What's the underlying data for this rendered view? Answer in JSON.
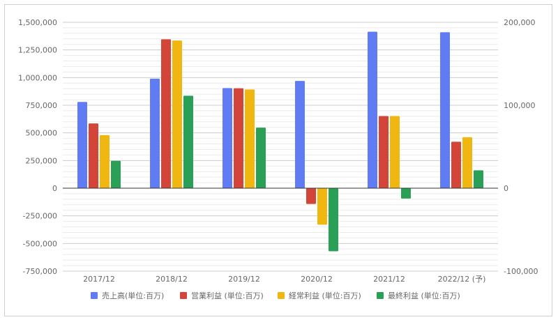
{
  "chart_data": {
    "type": "bar",
    "title": "",
    "xlabel": "",
    "ylabel": "",
    "categories": [
      "2017/12",
      "2018/12",
      "2019/12",
      "2020/12",
      "2021/12",
      "2022/12 (予)"
    ],
    "series": [
      {
        "name": "売上高(単位:百万)",
        "axis": "left",
        "color": "#5f7cf5",
        "values": [
          780000,
          990000,
          905000,
          970000,
          1415000,
          1410000
        ]
      },
      {
        "name": "営業利益 (単位:百万)",
        "axis": "right",
        "color": "#d34439",
        "values": [
          78000,
          179500,
          120500,
          -19000,
          87000,
          56000
        ]
      },
      {
        "name": "経常利益 (単位:百万)",
        "axis": "right",
        "color": "#f1b711",
        "values": [
          64000,
          178000,
          119000,
          -44000,
          87000,
          61500
        ]
      },
      {
        "name": "最終利益 (単位:百万)",
        "axis": "right",
        "color": "#2aa056",
        "values": [
          33000,
          111500,
          73000,
          -76000,
          -12500,
          21500
        ]
      }
    ],
    "y_left": {
      "ylim": [
        -750000,
        1500000
      ],
      "ticks": [
        "1,500,000",
        "1,250,000",
        "1,000,000",
        "750,000",
        "500,000",
        "250,000",
        "0",
        "-250,000",
        "-500,000",
        "-750,000"
      ],
      "tick_values": [
        1500000,
        1250000,
        1000000,
        750000,
        500000,
        250000,
        0,
        -250000,
        -500000,
        -750000
      ]
    },
    "y_right": {
      "ylim": [
        -100000,
        200000
      ],
      "ticks": [
        "200,000",
        "100,000",
        "0",
        "-100,000"
      ],
      "tick_values": [
        200000,
        100000,
        0,
        -100000
      ]
    },
    "grid": true,
    "legend_position": "bottom"
  }
}
